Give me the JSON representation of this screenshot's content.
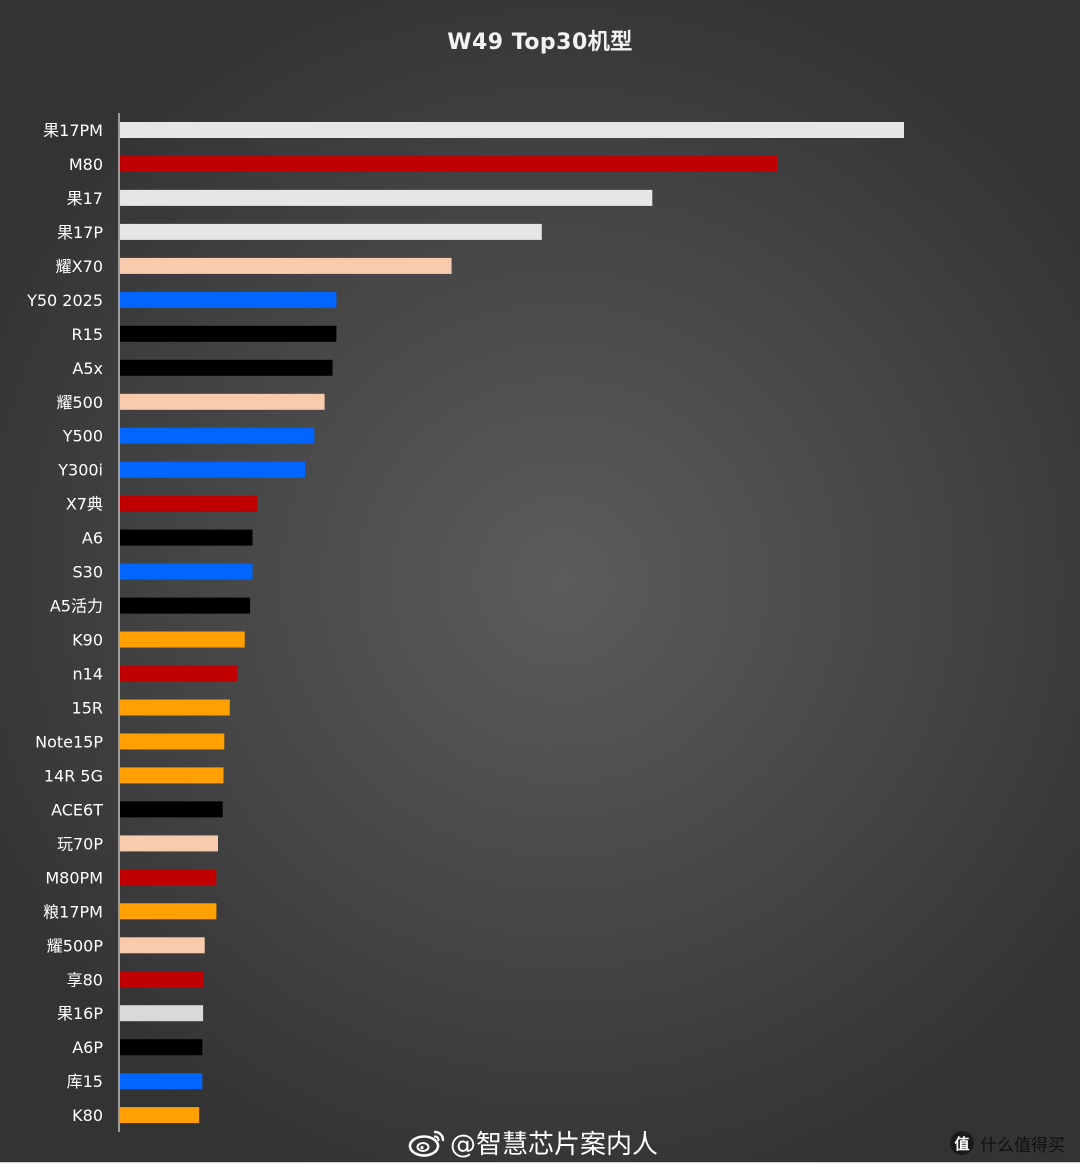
{
  "chart_data": {
    "type": "bar",
    "orientation": "horizontal",
    "title": "W49 Top30机型",
    "xlabel": "",
    "ylabel": "",
    "grid": false,
    "legend": "none",
    "xlim": [
      0,
      100
    ],
    "categories": [
      "果17PM",
      "M80",
      "果17",
      "果17P",
      "耀X70",
      "Y50 2025",
      "R15",
      "A5x",
      "耀500",
      "Y500",
      "Y300i",
      "X7典",
      "A6",
      "S30",
      "A5活力",
      "K90",
      "n14",
      "15R",
      "Note15P",
      "14R 5G",
      "ACE6T",
      "玩70P",
      "M80PM",
      "粮17PM",
      "耀500P",
      "享80",
      "果16P",
      "A6P",
      "库15",
      "K80"
    ],
    "values": [
      100,
      83.8,
      67.9,
      53.8,
      42.3,
      27.6,
      27.6,
      27.1,
      26.1,
      24.8,
      23.6,
      17.5,
      16.9,
      16.9,
      16.6,
      15.9,
      15.0,
      14.0,
      13.3,
      13.2,
      13.1,
      12.5,
      12.3,
      12.3,
      10.8,
      10.6,
      10.6,
      10.5,
      10.5,
      10.1
    ],
    "colors": [
      "#e6e6e6",
      "#c00000",
      "#e6e6e6",
      "#e6e6e6",
      "#f8cbad",
      "#0066ff",
      "#000000",
      "#000000",
      "#f8cbad",
      "#0066ff",
      "#0066ff",
      "#c00000",
      "#000000",
      "#0066ff",
      "#000000",
      "#ffa000",
      "#c00000",
      "#ffa000",
      "#ffa000",
      "#ffa000",
      "#000000",
      "#f8cbad",
      "#c00000",
      "#ffa000",
      "#f8cbad",
      "#c00000",
      "#d9d9d9",
      "#000000",
      "#0066ff",
      "#ffa000"
    ]
  },
  "watermark": {
    "text": "@智慧芯片案内人",
    "icon": "weibo-icon"
  },
  "site_badge": {
    "logo_text": "值",
    "text": "什么值得买"
  }
}
